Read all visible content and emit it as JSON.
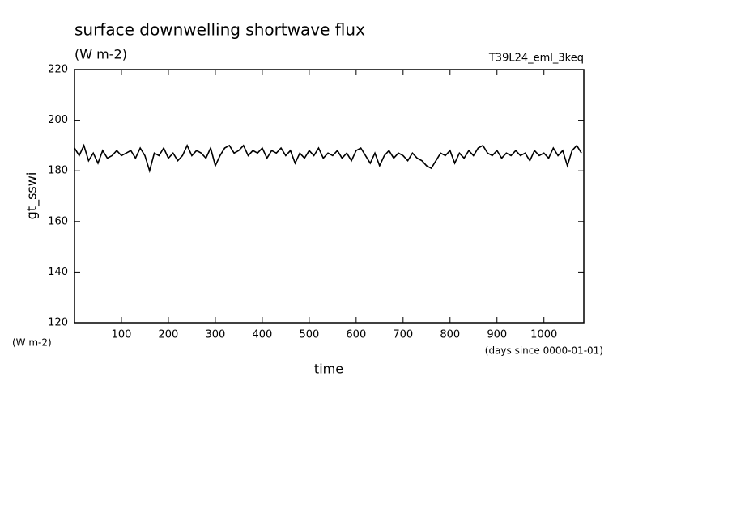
{
  "chart_data": {
    "type": "line",
    "title": "surface downwelling shortwave flux",
    "subtitle": "(W m-2)",
    "annotation": "T39L24_eml_3keq",
    "y_label": "gt_sswi",
    "y_unit_label": "(W m-2)",
    "x_label": "time",
    "x_unit_label": "(days since 0000-01-01)",
    "color": "#000000",
    "xlim": [
      0,
      1085
    ],
    "ylim": [
      120,
      220
    ],
    "xticks": [
      100,
      200,
      300,
      400,
      500,
      600,
      700,
      800,
      900,
      1000
    ],
    "yticks": [
      120,
      140,
      160,
      180,
      200,
      220
    ],
    "x": [
      0,
      10,
      20,
      30,
      40,
      50,
      60,
      70,
      80,
      90,
      100,
      110,
      120,
      130,
      140,
      150,
      160,
      170,
      180,
      190,
      200,
      210,
      220,
      230,
      240,
      250,
      260,
      270,
      280,
      290,
      300,
      310,
      320,
      330,
      340,
      350,
      360,
      370,
      380,
      390,
      400,
      410,
      420,
      430,
      440,
      450,
      460,
      470,
      480,
      490,
      500,
      510,
      520,
      530,
      540,
      550,
      560,
      570,
      580,
      590,
      600,
      610,
      620,
      630,
      640,
      650,
      660,
      670,
      680,
      690,
      700,
      710,
      720,
      730,
      740,
      750,
      760,
      770,
      780,
      790,
      800,
      810,
      820,
      830,
      840,
      850,
      860,
      870,
      880,
      890,
      900,
      910,
      920,
      930,
      940,
      950,
      960,
      970,
      980,
      990,
      1000,
      1010,
      1020,
      1030,
      1040,
      1050,
      1060,
      1070,
      1080
    ],
    "values": [
      189,
      186,
      190,
      184,
      187,
      183,
      188,
      185,
      186,
      188,
      186,
      187,
      188,
      185,
      189,
      186,
      180,
      187,
      186,
      189,
      185,
      187,
      184,
      186,
      190,
      186,
      188,
      187,
      185,
      189,
      182,
      186,
      189,
      190,
      187,
      188,
      190,
      186,
      188,
      187,
      189,
      185,
      188,
      187,
      189,
      186,
      188,
      183,
      187,
      185,
      188,
      186,
      189,
      185,
      187,
      186,
      188,
      185,
      187,
      184,
      188,
      189,
      186,
      183,
      187,
      182,
      186,
      188,
      185,
      187,
      186,
      184,
      187,
      185,
      184,
      182,
      181,
      184,
      187,
      186,
      188,
      183,
      187,
      185,
      188,
      186,
      189,
      190,
      187,
      186,
      188,
      185,
      187,
      186,
      188,
      186,
      187,
      184,
      188,
      186,
      187,
      185,
      189,
      186,
      188,
      182,
      188,
      190,
      187
    ]
  }
}
